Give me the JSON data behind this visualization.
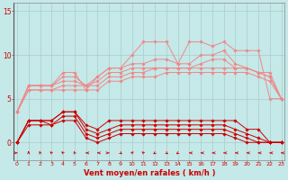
{
  "bg_color": "#c5e8e8",
  "grid_color": "#aacccc",
  "xlabel": "Vent moyen/en rafales ( km/h )",
  "xlabel_color": "#cc0000",
  "yticks": [
    0,
    5,
    10,
    15
  ],
  "xticks": [
    0,
    1,
    2,
    3,
    4,
    5,
    6,
    7,
    8,
    9,
    10,
    11,
    12,
    13,
    14,
    15,
    16,
    17,
    18,
    19,
    20,
    21,
    22,
    23
  ],
  "ylim": [
    -2.0,
    16
  ],
  "xlim": [
    -0.3,
    23.3
  ],
  "lines_salmon": [
    [
      3.5,
      6.5,
      6.5,
      6.5,
      8.0,
      8.0,
      6.0,
      7.5,
      8.5,
      8.5,
      10.0,
      11.5,
      11.5,
      11.5,
      9.0,
      11.5,
      11.5,
      11.0,
      11.5,
      10.5,
      10.5,
      10.5,
      5.0,
      5.0
    ],
    [
      3.5,
      6.5,
      6.5,
      6.5,
      7.5,
      7.5,
      6.5,
      7.5,
      8.5,
      8.5,
      9.0,
      9.0,
      9.5,
      9.5,
      9.0,
      9.0,
      10.0,
      10.0,
      10.5,
      9.0,
      8.5,
      8.0,
      8.0,
      5.0
    ],
    [
      3.5,
      6.5,
      6.5,
      6.5,
      7.0,
      7.0,
      6.5,
      7.0,
      8.0,
      8.0,
      8.5,
      8.5,
      8.5,
      8.5,
      8.5,
      8.5,
      9.0,
      9.5,
      9.5,
      8.5,
      8.5,
      8.0,
      7.5,
      5.0
    ],
    [
      3.5,
      6.0,
      6.0,
      6.0,
      6.5,
      6.5,
      6.5,
      6.5,
      7.5,
      7.5,
      8.0,
      8.0,
      8.5,
      8.5,
      8.5,
      8.5,
      8.5,
      8.5,
      8.5,
      8.5,
      8.5,
      8.0,
      7.5,
      5.0
    ],
    [
      3.5,
      6.0,
      6.0,
      6.0,
      6.0,
      6.0,
      6.0,
      6.0,
      7.0,
      7.0,
      7.5,
      7.5,
      7.5,
      8.0,
      8.0,
      8.0,
      8.0,
      8.0,
      8.0,
      8.0,
      8.0,
      7.5,
      7.0,
      5.0
    ]
  ],
  "lines_red": [
    [
      0.0,
      2.5,
      2.5,
      2.5,
      3.5,
      3.5,
      2.0,
      1.5,
      2.5,
      2.5,
      2.5,
      2.5,
      2.5,
      2.5,
      2.5,
      2.5,
      2.5,
      2.5,
      2.5,
      2.5,
      1.5,
      1.5,
      0.0,
      0.0
    ],
    [
      0.0,
      2.5,
      2.5,
      2.5,
      3.5,
      3.5,
      1.5,
      1.0,
      1.5,
      2.0,
      2.0,
      2.0,
      2.0,
      2.0,
      2.0,
      2.0,
      2.0,
      2.0,
      2.0,
      1.5,
      1.0,
      0.5,
      0.0,
      0.0
    ],
    [
      0.0,
      2.5,
      2.5,
      2.0,
      3.0,
      3.0,
      1.0,
      0.5,
      1.0,
      1.5,
      1.5,
      1.5,
      1.5,
      1.5,
      1.5,
      1.5,
      1.5,
      1.5,
      1.5,
      1.0,
      0.5,
      0.0,
      0.0,
      0.0
    ],
    [
      0.0,
      2.0,
      2.0,
      2.0,
      2.5,
      2.5,
      0.5,
      0.0,
      0.5,
      1.0,
      1.0,
      1.0,
      1.0,
      1.0,
      1.0,
      1.0,
      1.0,
      1.0,
      1.0,
      0.5,
      0.0,
      0.0,
      0.0,
      0.0
    ]
  ],
  "salmon_color": "#f08888",
  "dark_red_color": "#cc0000",
  "marker_size": 1.8,
  "wind_dirs": [
    90,
    180,
    200,
    225,
    225,
    195,
    270,
    270,
    90,
    45,
    135,
    225,
    315,
    45,
    315,
    270,
    270,
    270,
    270,
    270,
    270,
    270,
    270,
    270
  ]
}
